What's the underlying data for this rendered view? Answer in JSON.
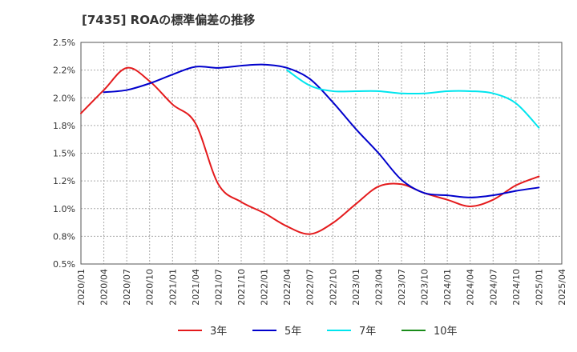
{
  "chart_data": {
    "type": "line",
    "title": "[7435]  ROAの標準偏差の推移",
    "xlabel": "",
    "ylabel": "",
    "ylim": [
      0.5,
      2.5
    ],
    "yticks": [
      "0.5%",
      "0.8%",
      "1.0%",
      "1.2%",
      "1.5%",
      "1.8%",
      "2.0%",
      "2.2%",
      "2.5%"
    ],
    "ytick_values": [
      0.5,
      0.75,
      1.0,
      1.25,
      1.5,
      1.75,
      2.0,
      2.25,
      2.5
    ],
    "x": [
      "2020/01",
      "2020/04",
      "2020/07",
      "2020/10",
      "2021/01",
      "2021/04",
      "2021/07",
      "2021/10",
      "2022/01",
      "2022/04",
      "2022/07",
      "2022/10",
      "2023/01",
      "2023/04",
      "2023/07",
      "2023/10",
      "2024/01",
      "2024/04",
      "2024/07",
      "2024/10",
      "2025/01",
      "2025/04"
    ],
    "grid": true,
    "legend_position": "bottom",
    "series": [
      {
        "name": "3年",
        "color": "#e41a1c",
        "values": [
          1.86,
          2.07,
          2.27,
          2.15,
          1.94,
          1.77,
          1.22,
          1.06,
          0.96,
          0.84,
          0.77,
          0.87,
          1.04,
          1.2,
          1.22,
          1.14,
          1.08,
          1.02,
          1.08,
          1.21,
          1.29,
          null
        ]
      },
      {
        "name": "5年",
        "color": "#0000cc",
        "values": [
          null,
          2.05,
          2.07,
          2.13,
          2.21,
          2.28,
          2.27,
          2.29,
          2.3,
          2.27,
          2.17,
          1.96,
          1.72,
          1.5,
          1.26,
          1.14,
          1.12,
          1.1,
          1.12,
          1.16,
          1.19,
          null
        ]
      },
      {
        "name": "7年",
        "color": "#00e5ee",
        "values": [
          null,
          null,
          null,
          null,
          null,
          null,
          null,
          null,
          null,
          2.25,
          2.11,
          2.06,
          2.06,
          2.06,
          2.04,
          2.04,
          2.06,
          2.06,
          2.04,
          1.95,
          1.73,
          null
        ]
      },
      {
        "name": "10年",
        "color": "#1a8c1a",
        "values": [
          null,
          null,
          null,
          null,
          null,
          null,
          null,
          null,
          null,
          null,
          null,
          null,
          null,
          null,
          null,
          null,
          null,
          null,
          null,
          null,
          null,
          null
        ]
      }
    ]
  }
}
